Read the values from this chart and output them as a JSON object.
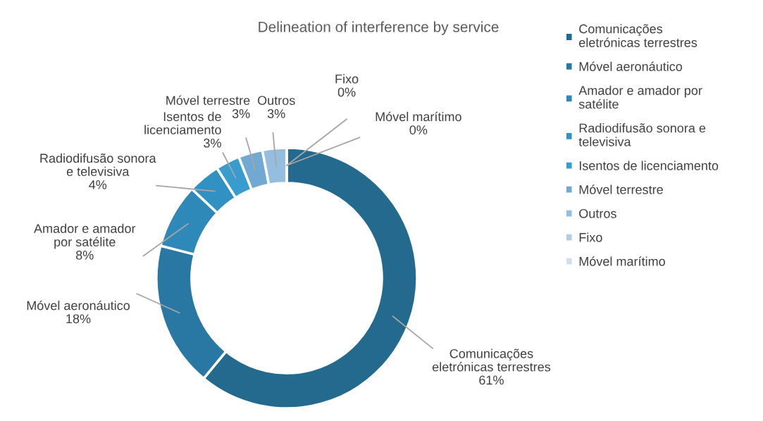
{
  "chart_data": {
    "type": "donut",
    "title": "Delineation of interference by service",
    "categories": [
      "Comunicações eletrónicas terrestres",
      "Móvel aeronáutico",
      "Amador e amador por satélite",
      "Radiodifusão sonora e televisiva",
      "Isentos de licenciamento",
      "Móvel terrestre",
      "Outros",
      "Fixo",
      "Móvel marítimo"
    ],
    "values": [
      61,
      18,
      8,
      4,
      3,
      3,
      3,
      0,
      0
    ],
    "value_labels": [
      "61%",
      "18%",
      "8%",
      "4%",
      "3%",
      "3%",
      "3%",
      "0%",
      "0%"
    ],
    "colors": [
      "#236a8e",
      "#2878a3",
      "#2e88b8",
      "#3291c3",
      "#389ccf",
      "#72a9d2",
      "#95bddf",
      "#b1cde6",
      "#cfdeee"
    ],
    "legend": "right"
  }
}
